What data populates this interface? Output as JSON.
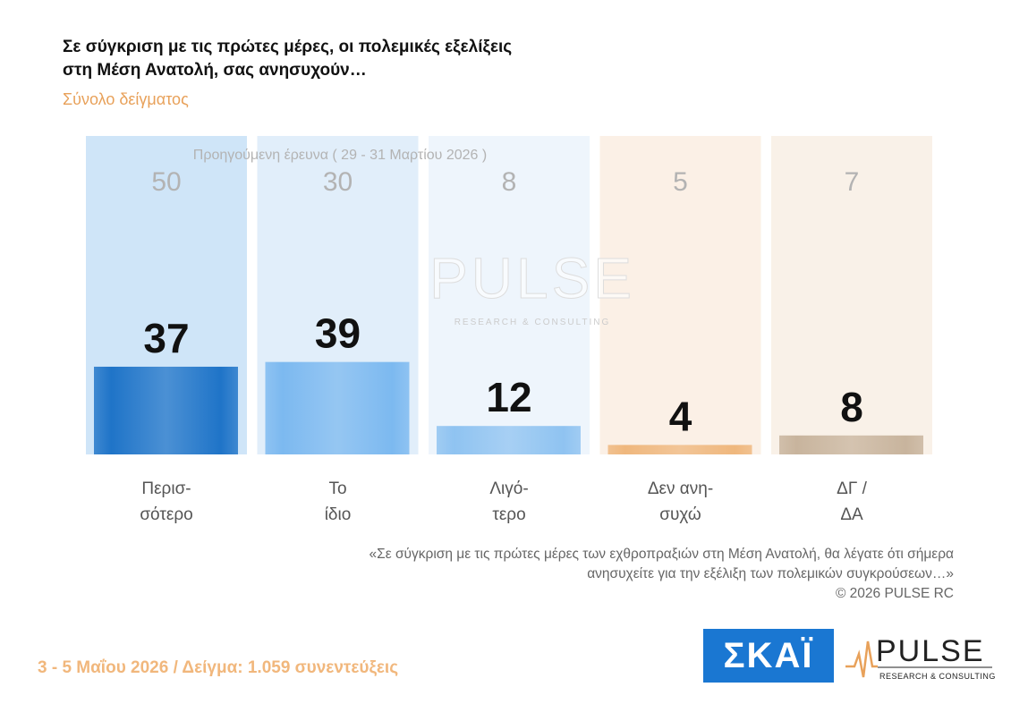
{
  "header": {
    "title_line1": "Σε σύγκριση με τις πρώτες μέρες, οι πολεμικές εξελίξεις",
    "title_line2": "στη Μέση Ανατολή, σας ανησυχούν…",
    "subtitle": "Σύνολο δείγματος"
  },
  "chart_data": {
    "type": "bar",
    "title": "Σε σύγκριση με τις πρώτες μέρες, οι πολεμικές εξελίξεις στη Μέση Ανατολή, σας ανησυχούν…",
    "subtitle": "Σύνολο δείγματος",
    "categories": [
      [
        "Περισ-",
        "σότερο"
      ],
      [
        "Το",
        "ίδιο"
      ],
      [
        "Λιγό-",
        "τερο"
      ],
      [
        "Δεν ανη-",
        "συχώ"
      ],
      [
        "ΔΓ /",
        "ΔΑ"
      ]
    ],
    "series": [
      {
        "name": "Προηγούμενη έρευνα ( 29 - 31 Μαρτίου 2026 )",
        "values": [
          50,
          30,
          8,
          5,
          7
        ]
      },
      {
        "values": [
          37,
          39,
          12,
          4,
          8
        ]
      }
    ],
    "ylim": [
      0,
      55
    ],
    "grid": false,
    "colors": {
      "current": [
        "#1f74c8",
        "#7cb9f0",
        "#8fc3f1",
        "#efb77d",
        "#c8b49d"
      ],
      "previous": [
        "#cfe5f8",
        "#e1eefa",
        "#eef5fc",
        "#fbf0e6",
        "#f9f1e8"
      ],
      "value_label": "#111111",
      "previous_label": "#b3b3b3",
      "category_label": "#555555"
    }
  },
  "watermark": {
    "text": "PULSE",
    "subtext": "RESEARCH & CONSULTING"
  },
  "quote": {
    "line1": "«Σε σύγκριση με τις πρώτες μέρες των εχθροπραξιών στη Μέση Ανατολή, θα λέγατε ότι σήμερα",
    "line2": "ανησυχείτε για την εξέλιξη των πολεμικών συγκρούσεων…»",
    "copyright": "©  2026  PULSE RC"
  },
  "footer": {
    "dates_sample": "3 - 5  Μαΐου 2026  /  Δείγμα:  1.059 συνεντεύξεις",
    "skai_logo": "ΣΚΑΪ",
    "pulse_logo": "PULSE",
    "pulse_tagline": "RESEARCH & CONSULTING"
  }
}
